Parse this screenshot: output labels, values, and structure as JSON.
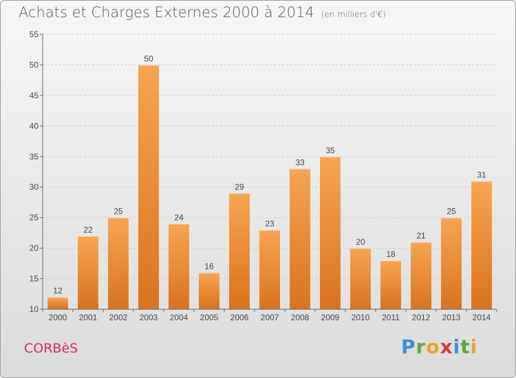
{
  "header": {
    "title": "Achats et Charges Externes 2000 à 2014",
    "unit": "(en milliers d'€)"
  },
  "footer": {
    "place": "CORBèS",
    "brand_letters": [
      {
        "ch": "P",
        "color": "#3b8fd6"
      },
      {
        "ch": "r",
        "color": "#5aa83a"
      },
      {
        "ch": "o",
        "color": "#f0a02a"
      },
      {
        "ch": "x",
        "color": "#d93a3a"
      },
      {
        "ch": "i",
        "color": "#3b8fd6"
      },
      {
        "ch": "t",
        "color": "#5aa83a"
      },
      {
        "ch": "i",
        "color": "#f0a02a"
      }
    ]
  },
  "chart_data": {
    "type": "bar",
    "categories": [
      "2000",
      "2001",
      "2002",
      "2003",
      "2004",
      "2005",
      "2006",
      "2007",
      "2008",
      "2009",
      "2010",
      "2011",
      "2012",
      "2013",
      "2014"
    ],
    "values": [
      12,
      22,
      25,
      50,
      24,
      16,
      29,
      23,
      33,
      35,
      20,
      18,
      21,
      25,
      31
    ],
    "ylim": [
      10,
      55
    ],
    "yticks": [
      10,
      15,
      20,
      25,
      30,
      35,
      40,
      45,
      50,
      55
    ],
    "grid": true,
    "bar_color": "#f0923a"
  }
}
